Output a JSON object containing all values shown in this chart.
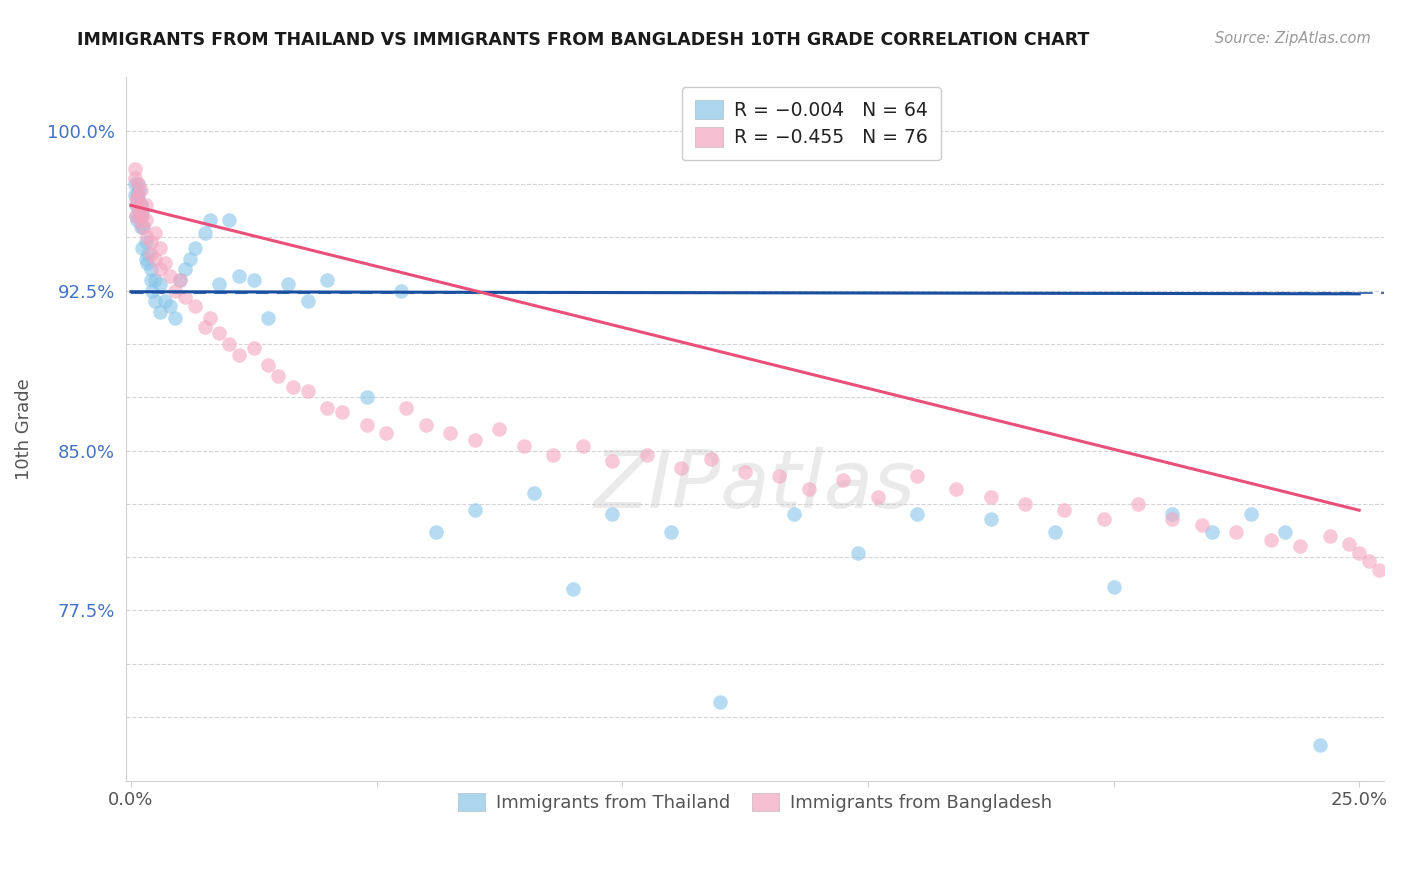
{
  "title": "IMMIGRANTS FROM THAILAND VS IMMIGRANTS FROM BANGLADESH 10TH GRADE CORRELATION CHART",
  "source": "Source: ZipAtlas.com",
  "ylabel": "10th Grade",
  "ytick_positions": [
    0.725,
    0.75,
    0.775,
    0.8,
    0.825,
    0.85,
    0.875,
    0.9,
    0.925,
    0.95,
    0.975,
    1.0
  ],
  "ytick_labels": [
    "",
    "",
    "77.5%",
    "",
    "",
    "85.0%",
    "",
    "",
    "92.5%",
    "",
    "",
    "100.0%"
  ],
  "ylim": [
    0.695,
    1.025
  ],
  "xlim": [
    -0.001,
    0.255
  ],
  "xtick_positions": [
    0.0,
    0.05,
    0.1,
    0.15,
    0.2,
    0.25
  ],
  "xtick_labels": [
    "0.0%",
    "",
    "",
    "",
    "",
    "25.0%"
  ],
  "legend_r_thailand": "R = −0.004",
  "legend_n_thailand": "N = 64",
  "legend_r_bangladesh": "R = −0.455",
  "legend_n_bangladesh": "N = 76",
  "thailand_color": "#88c5e8",
  "bangladesh_color": "#f4a6c0",
  "trend_thailand_color": "#1a4fa0",
  "trend_bangladesh_color": "#e8507a",
  "grid_color": "#d0d0d0",
  "title_color": "#1a1a1a",
  "ytick_color": "#4472C4",
  "xtick_color": "#555555",
  "source_color": "#999999",
  "ylabel_color": "#555555",
  "watermark_color": "#cccccc",
  "trend_thailand_x0": 0.0,
  "trend_thailand_x1": 0.25,
  "trend_thailand_y0": 0.9245,
  "trend_thailand_y1": 0.9235,
  "trend_bangladesh_x0": 0.0,
  "trend_bangladesh_x1": 0.25,
  "trend_bangladesh_y0": 0.965,
  "trend_bangladesh_y1": 0.822,
  "mean_line_y": 0.924,
  "thailand_x": [
    0.0008,
    0.0009,
    0.001,
    0.001,
    0.0012,
    0.0013,
    0.0014,
    0.0015,
    0.0016,
    0.0018,
    0.002,
    0.002,
    0.0021,
    0.0022,
    0.0023,
    0.0025,
    0.003,
    0.003,
    0.0032,
    0.0035,
    0.004,
    0.004,
    0.0042,
    0.005,
    0.005,
    0.006,
    0.006,
    0.007,
    0.008,
    0.009,
    0.01,
    0.011,
    0.012,
    0.013,
    0.015,
    0.016,
    0.018,
    0.02,
    0.022,
    0.025,
    0.028,
    0.032,
    0.036,
    0.04,
    0.048,
    0.055,
    0.062,
    0.07,
    0.082,
    0.09,
    0.098,
    0.11,
    0.12,
    0.135,
    0.148,
    0.16,
    0.175,
    0.188,
    0.2,
    0.212,
    0.22,
    0.228,
    0.235,
    0.242
  ],
  "thailand_y": [
    0.97,
    0.975,
    0.965,
    0.96,
    0.958,
    0.97,
    0.968,
    0.975,
    0.972,
    0.96,
    0.965,
    0.955,
    0.96,
    0.962,
    0.945,
    0.955,
    0.948,
    0.94,
    0.938,
    0.942,
    0.93,
    0.935,
    0.925,
    0.93,
    0.92,
    0.928,
    0.915,
    0.92,
    0.918,
    0.912,
    0.93,
    0.935,
    0.94,
    0.945,
    0.952,
    0.958,
    0.928,
    0.958,
    0.932,
    0.93,
    0.912,
    0.928,
    0.92,
    0.93,
    0.875,
    0.925,
    0.812,
    0.822,
    0.83,
    0.785,
    0.82,
    0.812,
    0.732,
    0.82,
    0.802,
    0.82,
    0.818,
    0.812,
    0.786,
    0.82,
    0.812,
    0.82,
    0.812,
    0.712
  ],
  "bangladesh_x": [
    0.0008,
    0.0009,
    0.001,
    0.001,
    0.0012,
    0.0014,
    0.0015,
    0.0016,
    0.0018,
    0.002,
    0.002,
    0.0022,
    0.0025,
    0.003,
    0.003,
    0.0032,
    0.004,
    0.004,
    0.005,
    0.005,
    0.006,
    0.006,
    0.007,
    0.008,
    0.009,
    0.01,
    0.011,
    0.013,
    0.015,
    0.016,
    0.018,
    0.02,
    0.022,
    0.025,
    0.028,
    0.03,
    0.033,
    0.036,
    0.04,
    0.043,
    0.048,
    0.052,
    0.056,
    0.06,
    0.065,
    0.07,
    0.075,
    0.08,
    0.086,
    0.092,
    0.098,
    0.105,
    0.112,
    0.118,
    0.125,
    0.132,
    0.138,
    0.145,
    0.152,
    0.16,
    0.168,
    0.175,
    0.182,
    0.19,
    0.198,
    0.205,
    0.212,
    0.218,
    0.225,
    0.232,
    0.238,
    0.244,
    0.248,
    0.25,
    0.252,
    0.254
  ],
  "bangladesh_y": [
    0.978,
    0.982,
    0.968,
    0.96,
    0.965,
    0.97,
    0.975,
    0.962,
    0.958,
    0.972,
    0.965,
    0.96,
    0.955,
    0.958,
    0.965,
    0.95,
    0.948,
    0.942,
    0.952,
    0.94,
    0.945,
    0.935,
    0.938,
    0.932,
    0.925,
    0.93,
    0.922,
    0.918,
    0.908,
    0.912,
    0.905,
    0.9,
    0.895,
    0.898,
    0.89,
    0.885,
    0.88,
    0.878,
    0.87,
    0.868,
    0.862,
    0.858,
    0.87,
    0.862,
    0.858,
    0.855,
    0.86,
    0.852,
    0.848,
    0.852,
    0.845,
    0.848,
    0.842,
    0.846,
    0.84,
    0.838,
    0.832,
    0.836,
    0.828,
    0.838,
    0.832,
    0.828,
    0.825,
    0.822,
    0.818,
    0.825,
    0.818,
    0.815,
    0.812,
    0.808,
    0.805,
    0.81,
    0.806,
    0.802,
    0.798,
    0.794
  ]
}
